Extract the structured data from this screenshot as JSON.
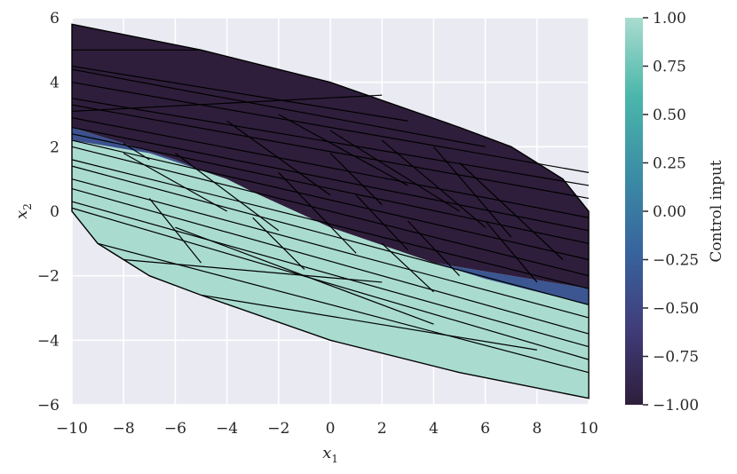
{
  "chart_data": {
    "type": "polygon-partition",
    "xlabel": "x",
    "xlabel_sub": "1",
    "ylabel": "x",
    "ylabel_sub": "2",
    "xlim": [
      -10,
      10
    ],
    "ylim": [
      -6,
      6
    ],
    "xticks": [
      "−10",
      "−8",
      "−6",
      "−4",
      "−2",
      "0",
      "2",
      "4",
      "6",
      "8",
      "10"
    ],
    "xtick_values": [
      -10,
      -8,
      -6,
      -4,
      -2,
      0,
      2,
      4,
      6,
      8,
      10
    ],
    "yticks": [
      "−6",
      "−4",
      "−2",
      "0",
      "2",
      "4",
      "6"
    ],
    "ytick_values": [
      -6,
      -4,
      -2,
      0,
      2,
      4,
      6
    ],
    "grid": true,
    "background_color": "#eaeaf2",
    "colorbar": {
      "label": "Control input",
      "range": [
        -1.0,
        1.0
      ],
      "ticks": [
        "1.00",
        "0.75",
        "0.50",
        "0.25",
        "0.00",
        "−0.25",
        "−0.50",
        "−0.75",
        "−1.00"
      ],
      "tick_values": [
        1.0,
        0.75,
        0.5,
        0.25,
        0.0,
        -0.25,
        -0.5,
        -0.75,
        -1.0
      ],
      "colors": [
        "#2e1e3b",
        "#413d7b",
        "#37659e",
        "#3b8ea5",
        "#4bb7ab",
        "#a9dccf"
      ]
    },
    "feasible_region": [
      [
        -10,
        5.8
      ],
      [
        -5,
        5
      ],
      [
        0,
        4
      ],
      [
        5,
        2.6
      ],
      [
        7,
        2.0
      ],
      [
        8,
        1.5
      ],
      [
        9,
        1.0
      ],
      [
        10,
        0
      ],
      [
        10,
        -5.8
      ],
      [
        5,
        -5
      ],
      [
        0,
        -4
      ],
      [
        -5,
        -2.6
      ],
      [
        -7,
        -2.0
      ],
      [
        -8,
        -1.5
      ],
      [
        -9,
        -1.0
      ],
      [
        -10,
        0
      ]
    ],
    "regions": [
      {
        "u": -1.0,
        "polygon": [
          [
            -10,
            5.8
          ],
          [
            -5,
            5
          ],
          [
            0,
            4
          ],
          [
            5,
            2.6
          ],
          [
            7,
            2.0
          ],
          [
            8,
            1.5
          ],
          [
            9,
            1.0
          ],
          [
            10,
            0
          ],
          [
            10,
            -2.4
          ],
          [
            4,
            -1.6
          ],
          [
            0,
            -0.5
          ],
          [
            -3,
            0.6
          ],
          [
            -6,
            1.6
          ],
          [
            -10,
            2.6
          ]
        ]
      },
      {
        "u": -0.4,
        "polygon": [
          [
            -10,
            2.6
          ],
          [
            -6,
            1.6
          ],
          [
            -3,
            0.6
          ],
          [
            -4,
            1.0
          ],
          [
            -7,
            1.8
          ],
          [
            -10,
            2.2
          ]
        ]
      },
      {
        "u": -0.35,
        "polygon": [
          [
            10,
            -2.4
          ],
          [
            4,
            -1.6
          ],
          [
            6,
            -2.1
          ],
          [
            10,
            -2.9
          ]
        ]
      },
      {
        "u": 1.0,
        "polygon": [
          [
            -10,
            2.2
          ],
          [
            -7,
            1.8
          ],
          [
            -4,
            1.0
          ],
          [
            -3,
            0.6
          ],
          [
            0,
            -0.5
          ],
          [
            4,
            -1.6
          ],
          [
            6,
            -2.1
          ],
          [
            10,
            -2.9
          ],
          [
            10,
            -5.8
          ],
          [
            5,
            -5
          ],
          [
            0,
            -4
          ],
          [
            -5,
            -2.6
          ],
          [
            -7,
            -2.0
          ],
          [
            -8,
            -1.5
          ],
          [
            -9,
            -1.0
          ],
          [
            -10,
            0
          ]
        ]
      }
    ],
    "boundary_lines": [
      [
        [
          -10,
          5.0
        ],
        [
          -5,
          5.0
        ]
      ],
      [
        [
          -10,
          4.5
        ],
        [
          3,
          2.8
        ]
      ],
      [
        [
          -10,
          4.4
        ],
        [
          6,
          2.0
        ]
      ],
      [
        [
          -10,
          4.0
        ],
        [
          10,
          1.2
        ]
      ],
      [
        [
          -10,
          3.5
        ],
        [
          10,
          0.8
        ]
      ],
      [
        [
          -10,
          3.3
        ],
        [
          10,
          0.4
        ]
      ],
      [
        [
          -10,
          3.1
        ],
        [
          2,
          3.6
        ]
      ],
      [
        [
          -10,
          2.9
        ],
        [
          10,
          -0.2
        ]
      ],
      [
        [
          -10,
          2.6
        ],
        [
          10,
          -0.6
        ]
      ],
      [
        [
          -10,
          2.4
        ],
        [
          10,
          -1.0
        ]
      ],
      [
        [
          -10,
          2.2
        ],
        [
          10,
          -1.5
        ]
      ],
      [
        [
          -10,
          2.0
        ],
        [
          10,
          -2.0
        ]
      ],
      [
        [
          -10,
          1.6
        ],
        [
          10,
          -2.4
        ]
      ],
      [
        [
          -10,
          1.4
        ],
        [
          10,
          -2.9
        ]
      ],
      [
        [
          -10,
          1.0
        ],
        [
          10,
          -3.3
        ]
      ],
      [
        [
          -10,
          0.7
        ],
        [
          10,
          -3.8
        ]
      ],
      [
        [
          -10,
          0.3
        ],
        [
          10,
          -4.2
        ]
      ],
      [
        [
          -10,
          0.1
        ],
        [
          10,
          -4.6
        ]
      ],
      [
        [
          -9,
          -1.0
        ],
        [
          10,
          -5.0
        ]
      ],
      [
        [
          -8,
          -1.5
        ],
        [
          2,
          -2.2
        ]
      ],
      [
        [
          -5,
          -2.6
        ],
        [
          8,
          -4.3
        ]
      ],
      [
        [
          -6,
          -0.5
        ],
        [
          4,
          -3.5
        ]
      ],
      [
        [
          -8,
          1.8
        ],
        [
          -4,
          0.0
        ]
      ],
      [
        [
          -6,
          1.8
        ],
        [
          -2,
          -0.6
        ]
      ],
      [
        [
          -4,
          2.8
        ],
        [
          0,
          0.5
        ]
      ],
      [
        [
          -2,
          3.0
        ],
        [
          3,
          0.8
        ]
      ],
      [
        [
          0,
          2.5
        ],
        [
          5,
          0.0
        ]
      ],
      [
        [
          2,
          2.2
        ],
        [
          6,
          -0.5
        ]
      ],
      [
        [
          4,
          2.0
        ],
        [
          7,
          -0.8
        ]
      ],
      [
        [
          3,
          -0.3
        ],
        [
          5,
          -2.0
        ]
      ],
      [
        [
          6,
          -0.3
        ],
        [
          8,
          -2.2
        ]
      ],
      [
        [
          -2,
          1.2
        ],
        [
          1,
          -1.3
        ]
      ],
      [
        [
          -3,
          -0.2
        ],
        [
          -1,
          -1.8
        ]
      ],
      [
        [
          1,
          0.5
        ],
        [
          3,
          -1.2
        ]
      ],
      [
        [
          5,
          1.5
        ],
        [
          9,
          -1.5
        ]
      ],
      [
        [
          0,
          1.8
        ],
        [
          2,
          0.2
        ]
      ],
      [
        [
          -8,
          2.1
        ],
        [
          -7,
          1.6
        ]
      ],
      [
        [
          -7,
          0.4
        ],
        [
          -5,
          -1.6
        ]
      ],
      [
        [
          2,
          -1.0
        ],
        [
          4,
          -2.5
        ]
      ]
    ]
  }
}
